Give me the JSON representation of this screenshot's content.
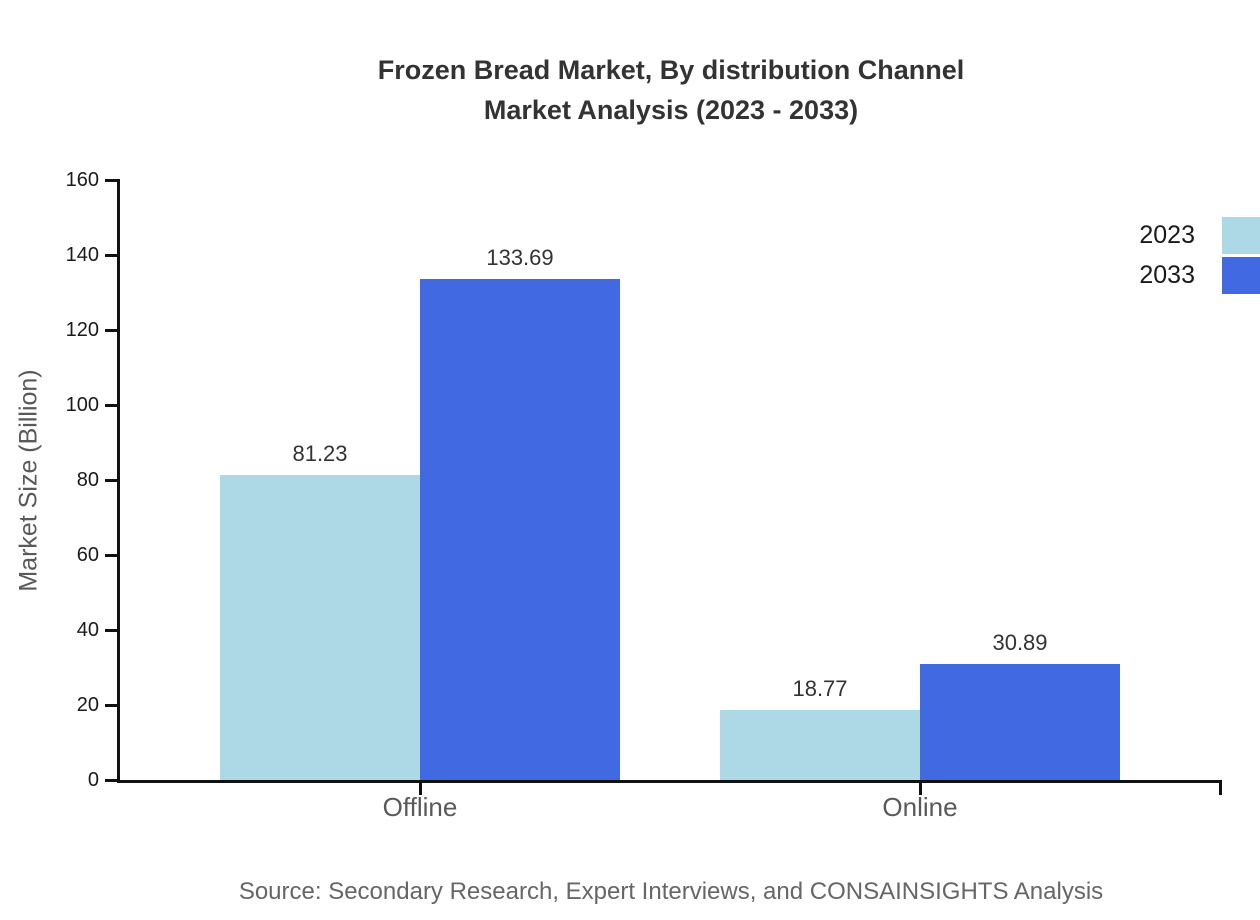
{
  "header": {
    "title_line1": "Frozen Bread Market, By distribution Channel",
    "title_line2": "Market Analysis (2023 - 2033)"
  },
  "chart_data": {
    "type": "bar",
    "title": "Frozen Bread Market, By distribution Channel Market Analysis (2023 - 2033)",
    "categories": [
      "Offline",
      "Online"
    ],
    "series": [
      {
        "name": "2023",
        "color": "#ADD8E6",
        "values": [
          81.23,
          18.77
        ]
      },
      {
        "name": "2033",
        "color": "#4169E1",
        "values": [
          133.69,
          30.89
        ]
      }
    ],
    "value_labels": [
      "81.23",
      "133.69",
      "18.77",
      "30.89"
    ],
    "xlabel": "",
    "ylabel": "Market Size (Billion)",
    "ylim": [
      0,
      160
    ],
    "yticks": [
      0,
      20,
      40,
      60,
      80,
      100,
      120,
      140,
      160
    ],
    "grid": false,
    "legend_position": "upper-right-outside",
    "bar_value_labels": true,
    "axis_color": "#111111"
  },
  "footer": {
    "source": "Source: Secondary Research, Expert Interviews, and CONSAINSIGHTS Analysis"
  }
}
